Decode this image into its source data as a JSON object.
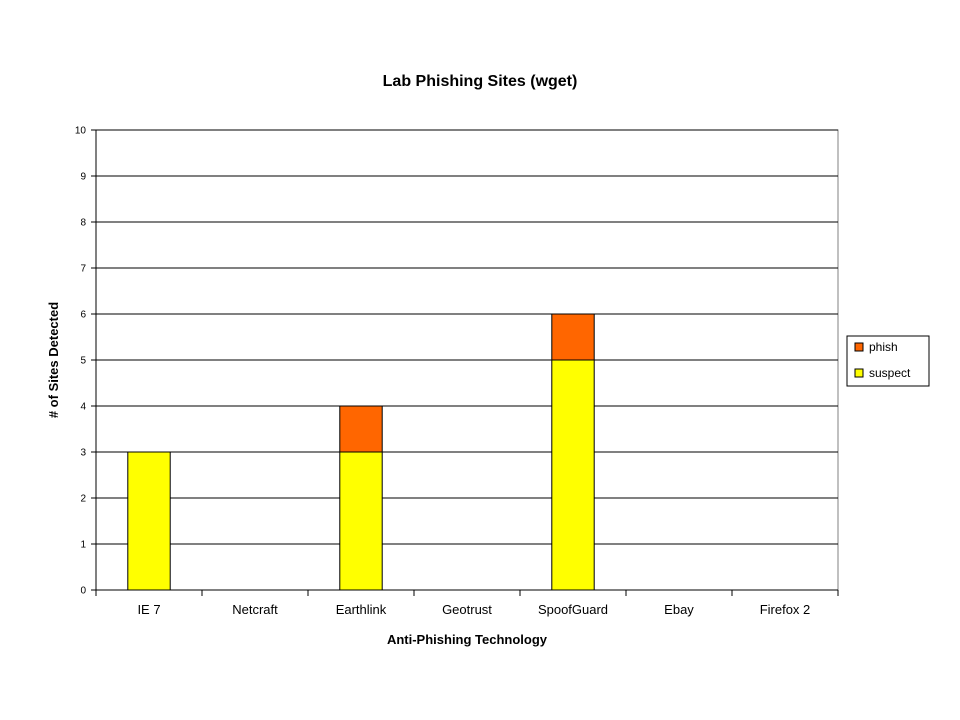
{
  "chart_data": {
    "type": "bar",
    "stacked": true,
    "title": "Lab Phishing Sites (wget)",
    "xlabel": "Anti-Phishing Technology",
    "ylabel": "# of Sites Detected",
    "ylim": [
      0,
      10
    ],
    "yticks": [
      0,
      1,
      2,
      3,
      4,
      5,
      6,
      7,
      8,
      9,
      10
    ],
    "grid": true,
    "legend_position": "right",
    "categories": [
      "IE 7",
      "Netcraft",
      "Earthlink",
      "Geotrust",
      "SpoofGuard",
      "Ebay",
      "Firefox 2"
    ],
    "series": [
      {
        "name": "suspect",
        "color": "#ffff00",
        "values": [
          3,
          0,
          3,
          0,
          5,
          0,
          0
        ]
      },
      {
        "name": "phish",
        "color": "#ff6600",
        "values": [
          0,
          0,
          1,
          0,
          1,
          0,
          0
        ]
      }
    ],
    "legend_order": [
      "phish",
      "suspect"
    ]
  }
}
